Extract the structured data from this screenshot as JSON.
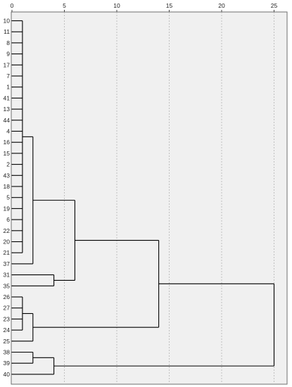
{
  "chart_data": {
    "type": "dendrogram",
    "title": "",
    "xlabel": "",
    "ylabel": "",
    "xlim": [
      0,
      26.5
    ],
    "x_ticks": [
      {
        "value": 0,
        "label": "0"
      },
      {
        "value": 5,
        "label": "5"
      },
      {
        "value": 10,
        "label": "10"
      },
      {
        "value": 15,
        "label": "15"
      },
      {
        "value": 20,
        "label": "20"
      },
      {
        "value": 25,
        "label": "25"
      }
    ],
    "grid": true,
    "leaves": [
      "10",
      "11",
      "8",
      "9",
      "17",
      "7",
      "1",
      "41",
      "13",
      "44",
      "4",
      "16",
      "15",
      "2",
      "43",
      "18",
      "5",
      "19",
      "6",
      "22",
      "20",
      "21",
      "37",
      "31",
      "35",
      "26",
      "27",
      "23",
      "24",
      "25",
      "38",
      "39",
      "40"
    ],
    "merges": [
      {
        "id": "A",
        "children": [
          "10",
          "11",
          "8",
          "9",
          "17",
          "7",
          "1",
          "41",
          "13",
          "44",
          "4",
          "16",
          "15",
          "2",
          "43",
          "18",
          "5",
          "19",
          "6",
          "22",
          "20",
          "21"
        ],
        "height": 1
      },
      {
        "id": "B",
        "children": [
          "A",
          "37"
        ],
        "height": 2
      },
      {
        "id": "C",
        "children": [
          "31",
          "35"
        ],
        "height": 4
      },
      {
        "id": "D",
        "children": [
          "B",
          "C"
        ],
        "height": 6
      },
      {
        "id": "E",
        "children": [
          "26",
          "27",
          "23",
          "24"
        ],
        "height": 1
      },
      {
        "id": "F",
        "children": [
          "E",
          "25"
        ],
        "height": 2
      },
      {
        "id": "G",
        "children": [
          "D",
          "F"
        ],
        "height": 14
      },
      {
        "id": "H",
        "children": [
          "38",
          "39"
        ],
        "height": 2
      },
      {
        "id": "I",
        "children": [
          "H",
          "40"
        ],
        "height": 4
      },
      {
        "id": "J",
        "children": [
          "G",
          "I"
        ],
        "height": 25
      }
    ]
  }
}
